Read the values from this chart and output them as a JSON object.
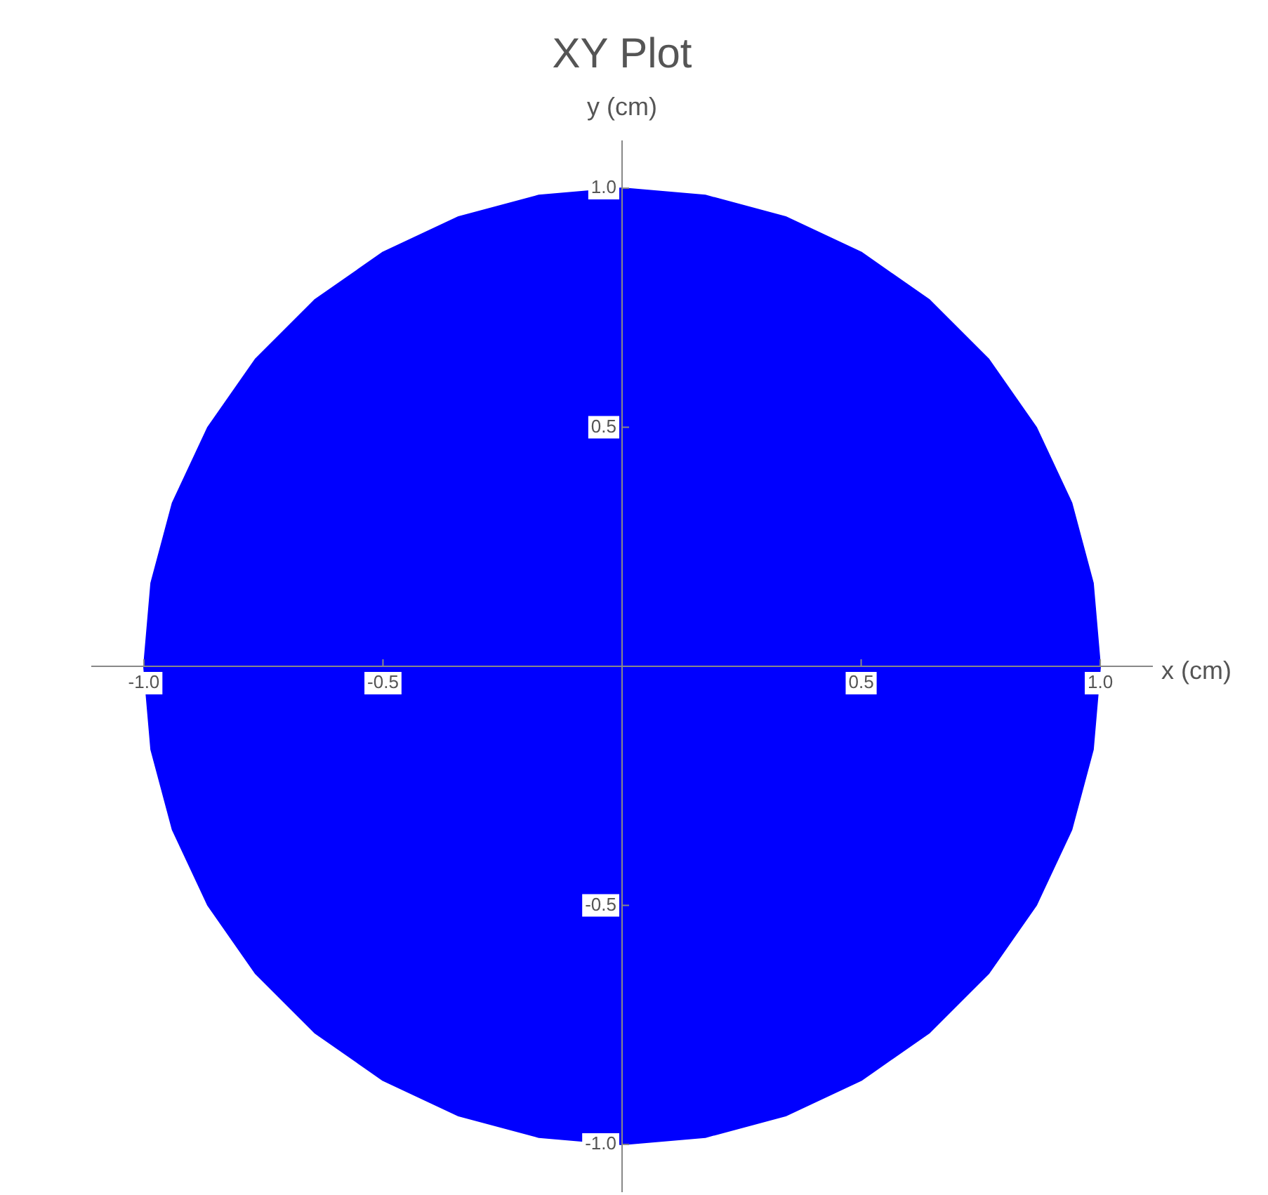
{
  "chart_data": {
    "type": "area",
    "title": "XY Plot",
    "xlabel": "x (cm)",
    "ylabel": "y (cm)",
    "xlim": [
      -1.11,
      1.11
    ],
    "ylim": [
      -1.1,
      1.1
    ],
    "xticks": [
      {
        "value": -1,
        "label": "-1.0"
      },
      {
        "value": -0.5,
        "label": "-0.5"
      },
      {
        "value": 0,
        "label": null
      },
      {
        "value": 0.5,
        "label": "0.5"
      },
      {
        "value": 1,
        "label": "1.0"
      }
    ],
    "yticks": [
      {
        "value": -1,
        "label": "-1.0"
      },
      {
        "value": -0.5,
        "label": "-0.5"
      },
      {
        "value": 0,
        "label": null
      },
      {
        "value": 0.5,
        "label": "0.5"
      },
      {
        "value": 1,
        "label": "1.0"
      }
    ],
    "grid": false,
    "legend": false,
    "marker": "none",
    "series": [
      {
        "color": "#0000ff",
        "x": [
          1,
          0.985,
          0.94,
          0.866,
          0.766,
          0.643,
          0.5,
          0.342,
          0.174,
          0,
          -0.174,
          -0.342,
          -0.5,
          -0.643,
          -0.766,
          -0.866,
          -0.94,
          -0.985,
          -1,
          -0.985,
          -0.94,
          -0.866,
          -0.766,
          -0.643,
          -0.5,
          -0.342,
          -0.174,
          0,
          0.174,
          0.342,
          0.5,
          0.643,
          0.766,
          0.866,
          0.94,
          0.985,
          1
        ],
        "values": [
          0,
          0.174,
          0.342,
          0.5,
          0.643,
          0.766,
          0.866,
          0.94,
          0.985,
          1,
          0.985,
          0.94,
          0.866,
          0.766,
          0.643,
          0.5,
          0.342,
          0.174,
          0,
          -0.174,
          -0.342,
          -0.5,
          -0.643,
          -0.766,
          -0.866,
          -0.94,
          -0.985,
          -1,
          -0.985,
          -0.94,
          -0.866,
          -0.766,
          -0.643,
          -0.5,
          -0.342,
          -0.174,
          0
        ]
      }
    ]
  }
}
